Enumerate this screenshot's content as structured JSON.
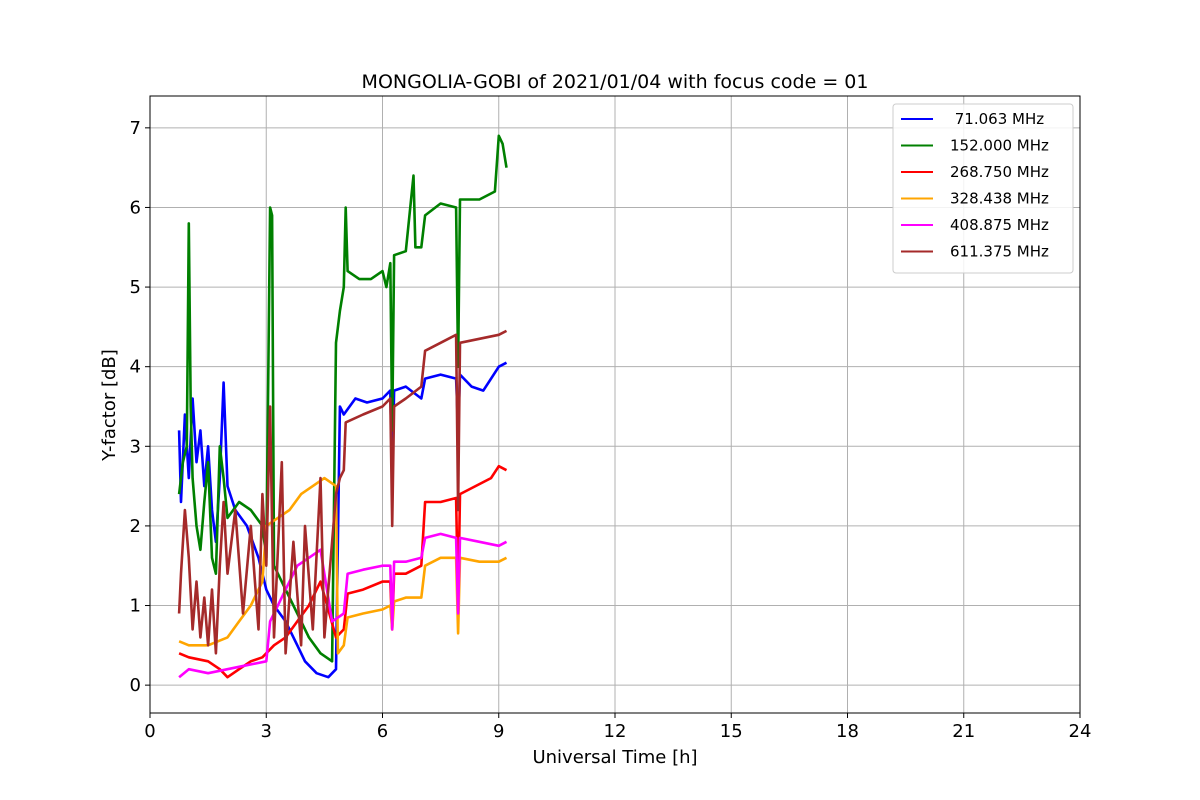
{
  "chart_data": {
    "type": "line",
    "title": "MONGOLIA-GOBI of 2021/01/04 with focus code = 01",
    "xlabel": "Universal Time [h]",
    "ylabel": "Y-factor [dB]",
    "xlim": [
      0,
      24
    ],
    "ylim": [
      -0.35,
      7.4
    ],
    "xticks": [
      0,
      3,
      6,
      9,
      12,
      15,
      18,
      21,
      24
    ],
    "yticks": [
      0,
      1,
      2,
      3,
      4,
      5,
      6,
      7
    ],
    "grid": true,
    "legend_position": "top-right",
    "series": [
      {
        "name": " 71.063 MHz",
        "color": "#0000ff",
        "points": [
          [
            0.75,
            3.2
          ],
          [
            0.8,
            2.3
          ],
          [
            0.9,
            3.4
          ],
          [
            1.0,
            2.6
          ],
          [
            1.1,
            3.6
          ],
          [
            1.2,
            2.8
          ],
          [
            1.3,
            3.2
          ],
          [
            1.4,
            2.5
          ],
          [
            1.5,
            3.0
          ],
          [
            1.6,
            2.2
          ],
          [
            1.7,
            1.8
          ],
          [
            1.8,
            2.6
          ],
          [
            1.9,
            3.8
          ],
          [
            2.0,
            2.5
          ],
          [
            2.2,
            2.2
          ],
          [
            2.5,
            2.0
          ],
          [
            2.8,
            1.6
          ],
          [
            3.0,
            1.2
          ],
          [
            3.2,
            1.0
          ],
          [
            3.5,
            0.8
          ],
          [
            3.8,
            0.5
          ],
          [
            4.0,
            0.3
          ],
          [
            4.3,
            0.15
          ],
          [
            4.6,
            0.1
          ],
          [
            4.8,
            0.2
          ],
          [
            4.9,
            3.5
          ],
          [
            5.0,
            3.4
          ],
          [
            5.3,
            3.6
          ],
          [
            5.6,
            3.55
          ],
          [
            6.0,
            3.6
          ],
          [
            6.2,
            3.7
          ],
          [
            6.25,
            2.5
          ],
          [
            6.3,
            3.7
          ],
          [
            6.6,
            3.75
          ],
          [
            7.0,
            3.6
          ],
          [
            7.1,
            3.85
          ],
          [
            7.5,
            3.9
          ],
          [
            7.9,
            3.85
          ],
          [
            7.95,
            3.2
          ],
          [
            8.0,
            3.9
          ],
          [
            8.3,
            3.75
          ],
          [
            8.6,
            3.7
          ],
          [
            9.0,
            4.0
          ],
          [
            9.2,
            4.05
          ]
        ]
      },
      {
        "name": "152.000 MHz",
        "color": "#008000",
        "points": [
          [
            0.75,
            2.4
          ],
          [
            0.85,
            2.8
          ],
          [
            0.95,
            3.0
          ],
          [
            1.0,
            5.8
          ],
          [
            1.05,
            3.5
          ],
          [
            1.1,
            2.6
          ],
          [
            1.2,
            2.0
          ],
          [
            1.3,
            1.7
          ],
          [
            1.4,
            2.3
          ],
          [
            1.5,
            2.8
          ],
          [
            1.6,
            1.6
          ],
          [
            1.7,
            1.4
          ],
          [
            1.8,
            3.0
          ],
          [
            1.9,
            2.6
          ],
          [
            2.0,
            2.1
          ],
          [
            2.3,
            2.3
          ],
          [
            2.6,
            2.2
          ],
          [
            2.9,
            2.0
          ],
          [
            3.0,
            1.6
          ],
          [
            3.1,
            6.0
          ],
          [
            3.15,
            5.9
          ],
          [
            3.2,
            1.5
          ],
          [
            3.5,
            1.2
          ],
          [
            3.8,
            0.9
          ],
          [
            4.1,
            0.6
          ],
          [
            4.4,
            0.4
          ],
          [
            4.7,
            0.3
          ],
          [
            4.8,
            4.3
          ],
          [
            4.9,
            4.7
          ],
          [
            5.0,
            5.0
          ],
          [
            5.05,
            6.0
          ],
          [
            5.1,
            5.2
          ],
          [
            5.4,
            5.1
          ],
          [
            5.7,
            5.1
          ],
          [
            6.0,
            5.2
          ],
          [
            6.1,
            5.0
          ],
          [
            6.2,
            5.3
          ],
          [
            6.25,
            3.2
          ],
          [
            6.3,
            5.4
          ],
          [
            6.6,
            5.45
          ],
          [
            6.8,
            6.4
          ],
          [
            6.85,
            5.5
          ],
          [
            7.0,
            5.5
          ],
          [
            7.1,
            5.9
          ],
          [
            7.5,
            6.05
          ],
          [
            7.9,
            6.0
          ],
          [
            7.95,
            4.0
          ],
          [
            8.0,
            6.1
          ],
          [
            8.5,
            6.1
          ],
          [
            8.9,
            6.2
          ],
          [
            9.0,
            6.9
          ],
          [
            9.1,
            6.8
          ],
          [
            9.2,
            6.5
          ]
        ]
      },
      {
        "name": "268.750 MHz",
        "color": "#ff0000",
        "points": [
          [
            0.75,
            0.4
          ],
          [
            1.0,
            0.35
          ],
          [
            1.5,
            0.3
          ],
          [
            1.8,
            0.2
          ],
          [
            2.0,
            0.1
          ],
          [
            2.3,
            0.2
          ],
          [
            2.6,
            0.3
          ],
          [
            2.9,
            0.35
          ],
          [
            3.2,
            0.5
          ],
          [
            3.5,
            0.6
          ],
          [
            3.8,
            0.8
          ],
          [
            4.1,
            1.0
          ],
          [
            4.4,
            1.3
          ],
          [
            4.8,
            0.6
          ],
          [
            5.0,
            0.7
          ],
          [
            5.1,
            1.15
          ],
          [
            5.5,
            1.2
          ],
          [
            6.0,
            1.3
          ],
          [
            6.2,
            1.3
          ],
          [
            6.25,
            0.7
          ],
          [
            6.3,
            1.4
          ],
          [
            6.6,
            1.4
          ],
          [
            7.0,
            1.5
          ],
          [
            7.1,
            2.3
          ],
          [
            7.5,
            2.3
          ],
          [
            7.9,
            2.35
          ],
          [
            7.95,
            1.0
          ],
          [
            8.0,
            2.4
          ],
          [
            8.4,
            2.5
          ],
          [
            8.8,
            2.6
          ],
          [
            9.0,
            2.75
          ],
          [
            9.2,
            2.7
          ]
        ]
      },
      {
        "name": "328.438 MHz",
        "color": "#ffa500",
        "points": [
          [
            0.75,
            0.55
          ],
          [
            1.0,
            0.5
          ],
          [
            1.5,
            0.5
          ],
          [
            2.0,
            0.6
          ],
          [
            2.3,
            0.8
          ],
          [
            2.6,
            1.0
          ],
          [
            2.9,
            1.3
          ],
          [
            3.0,
            2.0
          ],
          [
            3.3,
            2.1
          ],
          [
            3.6,
            2.2
          ],
          [
            3.9,
            2.4
          ],
          [
            4.2,
            2.5
          ],
          [
            4.5,
            2.6
          ],
          [
            4.8,
            2.5
          ],
          [
            4.85,
            0.4
          ],
          [
            5.0,
            0.5
          ],
          [
            5.1,
            0.85
          ],
          [
            5.5,
            0.9
          ],
          [
            6.0,
            0.95
          ],
          [
            6.2,
            1.0
          ],
          [
            6.25,
            0.7
          ],
          [
            6.3,
            1.05
          ],
          [
            6.6,
            1.1
          ],
          [
            7.0,
            1.1
          ],
          [
            7.1,
            1.5
          ],
          [
            7.5,
            1.6
          ],
          [
            7.9,
            1.6
          ],
          [
            7.95,
            0.65
          ],
          [
            8.0,
            1.6
          ],
          [
            8.5,
            1.55
          ],
          [
            9.0,
            1.55
          ],
          [
            9.2,
            1.6
          ]
        ]
      },
      {
        "name": "408.875 MHz",
        "color": "#ff00ff",
        "points": [
          [
            0.75,
            0.1
          ],
          [
            1.0,
            0.2
          ],
          [
            1.5,
            0.15
          ],
          [
            2.0,
            0.2
          ],
          [
            2.5,
            0.25
          ],
          [
            3.0,
            0.3
          ],
          [
            3.1,
            0.8
          ],
          [
            3.5,
            1.2
          ],
          [
            3.8,
            1.5
          ],
          [
            4.1,
            1.6
          ],
          [
            4.4,
            1.7
          ],
          [
            4.7,
            0.8
          ],
          [
            5.0,
            0.9
          ],
          [
            5.1,
            1.4
          ],
          [
            5.5,
            1.45
          ],
          [
            6.0,
            1.5
          ],
          [
            6.2,
            1.5
          ],
          [
            6.25,
            0.7
          ],
          [
            6.3,
            1.55
          ],
          [
            6.6,
            1.55
          ],
          [
            7.0,
            1.6
          ],
          [
            7.1,
            1.85
          ],
          [
            7.5,
            1.9
          ],
          [
            7.9,
            1.85
          ],
          [
            7.95,
            0.9
          ],
          [
            8.0,
            1.85
          ],
          [
            8.5,
            1.8
          ],
          [
            9.0,
            1.75
          ],
          [
            9.2,
            1.8
          ]
        ]
      },
      {
        "name": "611.375 MHz",
        "color": "#a52a2a",
        "points": [
          [
            0.75,
            0.9
          ],
          [
            0.8,
            1.4
          ],
          [
            0.9,
            2.2
          ],
          [
            1.0,
            1.6
          ],
          [
            1.1,
            0.7
          ],
          [
            1.2,
            1.3
          ],
          [
            1.3,
            0.6
          ],
          [
            1.4,
            1.1
          ],
          [
            1.5,
            0.5
          ],
          [
            1.6,
            1.2
          ],
          [
            1.7,
            0.4
          ],
          [
            1.8,
            1.5
          ],
          [
            1.9,
            2.3
          ],
          [
            2.0,
            1.4
          ],
          [
            2.2,
            2.2
          ],
          [
            2.4,
            0.9
          ],
          [
            2.6,
            2.0
          ],
          [
            2.8,
            0.7
          ],
          [
            2.9,
            2.4
          ],
          [
            3.0,
            1.5
          ],
          [
            3.1,
            3.5
          ],
          [
            3.2,
            0.6
          ],
          [
            3.4,
            2.8
          ],
          [
            3.5,
            0.4
          ],
          [
            3.7,
            1.8
          ],
          [
            3.9,
            0.5
          ],
          [
            4.0,
            2.0
          ],
          [
            4.2,
            0.7
          ],
          [
            4.4,
            2.6
          ],
          [
            4.5,
            0.6
          ],
          [
            4.7,
            1.8
          ],
          [
            4.8,
            2.4
          ],
          [
            4.9,
            2.6
          ],
          [
            5.0,
            2.7
          ],
          [
            5.05,
            3.3
          ],
          [
            5.5,
            3.4
          ],
          [
            6.0,
            3.5
          ],
          [
            6.2,
            3.6
          ],
          [
            6.25,
            2.0
          ],
          [
            6.3,
            3.5
          ],
          [
            6.6,
            3.6
          ],
          [
            7.0,
            3.75
          ],
          [
            7.1,
            4.2
          ],
          [
            7.5,
            4.3
          ],
          [
            7.9,
            4.4
          ],
          [
            7.95,
            2.2
          ],
          [
            8.0,
            4.3
          ],
          [
            8.5,
            4.35
          ],
          [
            9.0,
            4.4
          ],
          [
            9.2,
            4.45
          ]
        ]
      }
    ]
  }
}
